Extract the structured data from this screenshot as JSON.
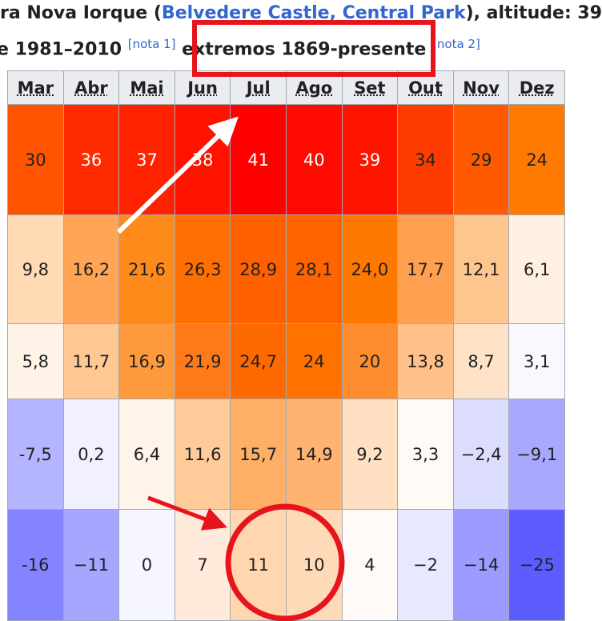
{
  "header": {
    "line1": {
      "before": "ra Nova Iorque (",
      "link": "Belvedere Castle, Central Park",
      "after": "), altitude: 39"
    },
    "line2": {
      "text": "e 1981–2010",
      "note1": "[nota 1]",
      "extremes": "extremos 1869-presente",
      "note2": "[nota 2]"
    }
  },
  "table": {
    "columns": [
      "Mar",
      "Abr",
      "Mai",
      "Jun",
      "Jul",
      "Ago",
      "Set",
      "Out",
      "Nov",
      "Dez"
    ],
    "header_color": "#eaecf0",
    "rows": [
      {
        "cells": [
          "30",
          "36",
          "37",
          "38",
          "41",
          "40",
          "39",
          "34",
          "29",
          "24"
        ],
        "colors": [
          "#ff5400",
          "#ff2a00",
          "#ff2200",
          "#ff1200",
          "#ff0000",
          "#ff0a00",
          "#ff1400",
          "#ff3c00",
          "#ff5a00",
          "#ff7a00"
        ]
      },
      {
        "cells": [
          "9,8",
          "16,2",
          "21,6",
          "26,3",
          "28,9",
          "28,1",
          "24,0",
          "17,7",
          "12,1",
          "6,1"
        ],
        "colors": [
          "#ffdab5",
          "#ffa555",
          "#ff8a1c",
          "#ff6e00",
          "#ff6000",
          "#ff6400",
          "#ff7800",
          "#ffa050",
          "#ffc58e",
          "#fff0e2"
        ]
      },
      {
        "cells": [
          "5,8",
          "11,7",
          "16,9",
          "21,9",
          "24,7",
          "24",
          "20",
          "13,8",
          "8,7",
          "3,1"
        ],
        "colors": [
          "#fff2e6",
          "#ffc892",
          "#ff9a3c",
          "#ff7a18",
          "#ff6a00",
          "#ff7200",
          "#ff8c2e",
          "#ffc089",
          "#ffe3c8",
          "#f8f8ff"
        ]
      },
      {
        "cells": [
          "-7,5",
          "0,2",
          "6,4",
          "11,6",
          "15,7",
          "14,9",
          "9,2",
          "3,3",
          "−2,4",
          "−9,1"
        ],
        "colors": [
          "#b4b4ff",
          "#f0f0ff",
          "#fff4ea",
          "#ffcc99",
          "#ffae66",
          "#ffb370",
          "#ffe0c3",
          "#fffaf5",
          "#dcdcff",
          "#a8a8ff"
        ]
      },
      {
        "cells": [
          "-16",
          "−11",
          "0",
          "7",
          "11",
          "10",
          "4",
          "−2",
          "−14",
          "−25"
        ],
        "colors": [
          "#8484ff",
          "#a6a6ff",
          "#f6f6ff",
          "#ffeadc",
          "#ffd6b0",
          "#ffdab8",
          "#fffaf8",
          "#e8e8ff",
          "#9c9cff",
          "#5c5cff"
        ]
      }
    ]
  }
}
